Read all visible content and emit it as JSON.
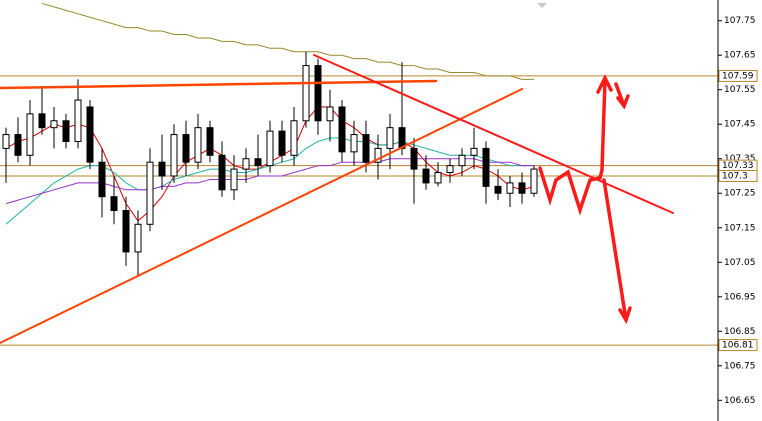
{
  "chart_data": {
    "type": "candlestick",
    "ylim": [
      106.59,
      107.81
    ],
    "yticks": [
      107.75,
      107.65,
      107.55,
      107.45,
      107.35,
      107.25,
      107.15,
      107.05,
      106.95,
      106.85,
      106.75,
      106.65
    ],
    "open": [
      107.38,
      107.42,
      107.36,
      107.48,
      107.44,
      107.46,
      107.4,
      107.5,
      107.34,
      107.24,
      107.2,
      107.08,
      107.16,
      107.34,
      107.3,
      107.42,
      107.34,
      107.44,
      107.36,
      107.26,
      107.32,
      107.35,
      107.33,
      107.43,
      107.36,
      107.46,
      107.62,
      107.46,
      107.5,
      107.37,
      107.42,
      107.34,
      107.38,
      107.44,
      107.38,
      107.32,
      107.28,
      107.31,
      107.33,
      107.36,
      107.38,
      107.27,
      107.25,
      107.28,
      107.25
    ],
    "high": [
      107.44,
      107.47,
      107.52,
      107.56,
      107.5,
      107.48,
      107.58,
      107.52,
      107.38,
      107.3,
      107.24,
      107.2,
      107.38,
      107.42,
      107.45,
      107.46,
      107.48,
      107.46,
      107.4,
      107.36,
      107.38,
      107.42,
      107.46,
      107.46,
      107.5,
      107.66,
      107.64,
      107.55,
      107.52,
      107.46,
      107.46,
      107.42,
      107.48,
      107.63,
      107.41,
      107.36,
      107.34,
      107.35,
      107.38,
      107.44,
      107.4,
      107.32,
      107.3,
      107.31,
      107.33
    ],
    "low": [
      107.28,
      107.34,
      107.33,
      107.42,
      107.38,
      107.38,
      107.38,
      107.32,
      107.18,
      107.16,
      107.04,
      107.01,
      107.14,
      107.26,
      107.28,
      107.3,
      107.32,
      107.34,
      107.24,
      107.23,
      107.28,
      107.3,
      107.31,
      107.34,
      107.33,
      107.44,
      107.42,
      107.4,
      107.34,
      107.33,
      107.31,
      107.29,
      107.32,
      107.36,
      107.22,
      107.26,
      107.27,
      107.28,
      107.3,
      107.32,
      107.22,
      107.23,
      107.21,
      107.22,
      107.24
    ],
    "close": [
      107.42,
      107.36,
      107.48,
      107.44,
      107.46,
      107.4,
      107.52,
      107.34,
      107.24,
      107.2,
      107.08,
      107.16,
      107.34,
      107.3,
      107.42,
      107.34,
      107.44,
      107.36,
      107.26,
      107.32,
      107.35,
      107.33,
      107.43,
      107.36,
      107.46,
      107.62,
      107.46,
      107.5,
      107.37,
      107.42,
      107.34,
      107.38,
      107.44,
      107.38,
      107.32,
      107.28,
      107.31,
      107.33,
      107.36,
      107.38,
      107.27,
      107.25,
      107.28,
      107.25,
      107.32
    ],
    "series": [
      {
        "color": "#e00000",
        "values": [
          107.38,
          107.4,
          107.41,
          107.43,
          107.45,
          107.44,
          107.45,
          107.44,
          107.38,
          107.3,
          107.22,
          107.17,
          107.2,
          107.24,
          107.3,
          107.34,
          107.36,
          107.38,
          107.36,
          107.33,
          107.32,
          107.32,
          107.34,
          107.36,
          107.38,
          107.46,
          107.5,
          107.5,
          107.46,
          107.44,
          107.41,
          107.39,
          107.39,
          107.4,
          107.38,
          107.34,
          107.31,
          107.3,
          107.31,
          107.33,
          107.32,
          107.3,
          107.27,
          107.26,
          107.27
        ]
      },
      {
        "color": "#20b2aa",
        "values": [
          107.16,
          107.19,
          107.22,
          107.25,
          107.28,
          107.3,
          107.32,
          107.33,
          107.33,
          107.31,
          107.28,
          107.26,
          107.26,
          107.27,
          107.29,
          107.3,
          107.31,
          107.32,
          107.32,
          107.31,
          107.31,
          107.32,
          107.33,
          107.34,
          107.35,
          107.38,
          107.4,
          107.41,
          107.41,
          107.4,
          107.4,
          107.39,
          107.39,
          107.4,
          107.39,
          107.38,
          107.37,
          107.36,
          107.36,
          107.36,
          107.35,
          107.34,
          107.33,
          107.33,
          107.33
        ]
      },
      {
        "color": "#9932cc",
        "values": [
          107.22,
          107.23,
          107.24,
          107.25,
          107.26,
          107.27,
          107.28,
          107.28,
          107.28,
          107.27,
          107.26,
          107.26,
          107.26,
          107.27,
          107.27,
          107.28,
          107.28,
          107.29,
          107.29,
          107.29,
          107.29,
          107.3,
          107.3,
          107.3,
          107.31,
          107.32,
          107.33,
          107.33,
          107.34,
          107.34,
          107.34,
          107.34,
          107.35,
          107.35,
          107.35,
          107.35,
          107.35,
          107.35,
          107.35,
          107.35,
          107.34,
          107.34,
          107.34,
          107.33,
          107.33
        ]
      },
      {
        "color": "#9a8a2a",
        "values": [
          null,
          null,
          null,
          107.8,
          107.79,
          107.78,
          107.77,
          107.76,
          107.75,
          107.74,
          107.73,
          107.73,
          107.72,
          107.72,
          107.71,
          107.71,
          107.7,
          107.7,
          107.69,
          107.69,
          107.68,
          107.68,
          107.67,
          107.67,
          107.66,
          107.66,
          107.66,
          107.65,
          107.65,
          107.64,
          107.64,
          107.63,
          107.63,
          107.62,
          107.62,
          107.61,
          107.61,
          107.6,
          107.6,
          107.6,
          107.59,
          107.59,
          107.59,
          107.58,
          107.58
        ]
      }
    ],
    "levels": [
      107.59,
      107.33,
      107.3,
      106.81
    ],
    "level_color": "#b8862b"
  }
}
